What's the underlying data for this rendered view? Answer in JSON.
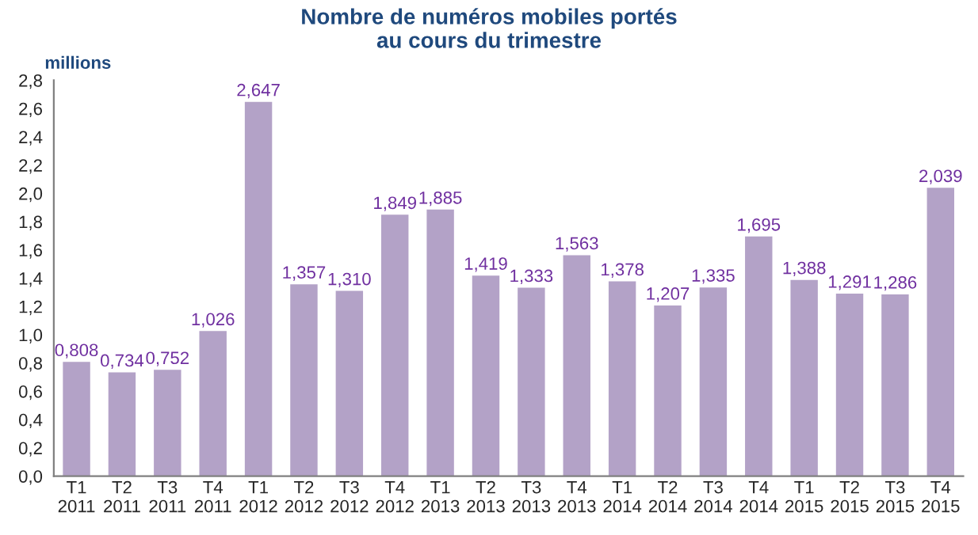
{
  "chart_data": {
    "type": "bar",
    "title": "Nombre de numéros mobiles portés\nau cours du trimestre",
    "ylabel": "millions",
    "categories": [
      "T1\n2011",
      "T2\n2011",
      "T3\n2011",
      "T4\n2011",
      "T1\n2012",
      "T2\n2012",
      "T3\n2012",
      "T4\n2012",
      "T1\n2013",
      "T2\n2013",
      "T3\n2013",
      "T4\n2013",
      "T1\n2014",
      "T2\n2014",
      "T3\n2014",
      "T4\n2014",
      "T1\n2015",
      "T2\n2015",
      "T3\n2015",
      "T4\n2015"
    ],
    "values": [
      0.808,
      0.734,
      0.752,
      1.026,
      2.647,
      1.357,
      1.31,
      1.849,
      1.885,
      1.419,
      1.333,
      1.563,
      1.378,
      1.207,
      1.335,
      1.695,
      1.388,
      1.291,
      1.286,
      2.039
    ],
    "value_labels": [
      "0,808",
      "0,734",
      "0,752",
      "1,026",
      "2,647",
      "1,357",
      "1,310",
      "1,849",
      "1,885",
      "1,419",
      "1,333",
      "1,563",
      "1,378",
      "1,207",
      "1,335",
      "1,695",
      "1,388",
      "1,291",
      "1,286",
      "2,039"
    ],
    "color": "#b3a2c7",
    "ylim": [
      0,
      2.8
    ],
    "yticks": [
      {
        "value": 0,
        "label": "0,0"
      },
      {
        "value": 0.2,
        "label": "0,2"
      },
      {
        "value": 0.4,
        "label": "0,4"
      },
      {
        "value": 0.6,
        "label": "0,6"
      },
      {
        "value": 0.8,
        "label": "0,8"
      },
      {
        "value": 1.0,
        "label": "1,0"
      },
      {
        "value": 1.2,
        "label": "1,2"
      },
      {
        "value": 1.4,
        "label": "1,4"
      },
      {
        "value": 1.6,
        "label": "1,6"
      },
      {
        "value": 1.8,
        "label": "1,8"
      },
      {
        "value": 2.0,
        "label": "2,0"
      },
      {
        "value": 2.2,
        "label": "2,2"
      },
      {
        "value": 2.4,
        "label": "2,4"
      },
      {
        "value": 2.6,
        "label": "2,6"
      },
      {
        "value": 2.8,
        "label": "2,8"
      }
    ],
    "grid": false
  }
}
